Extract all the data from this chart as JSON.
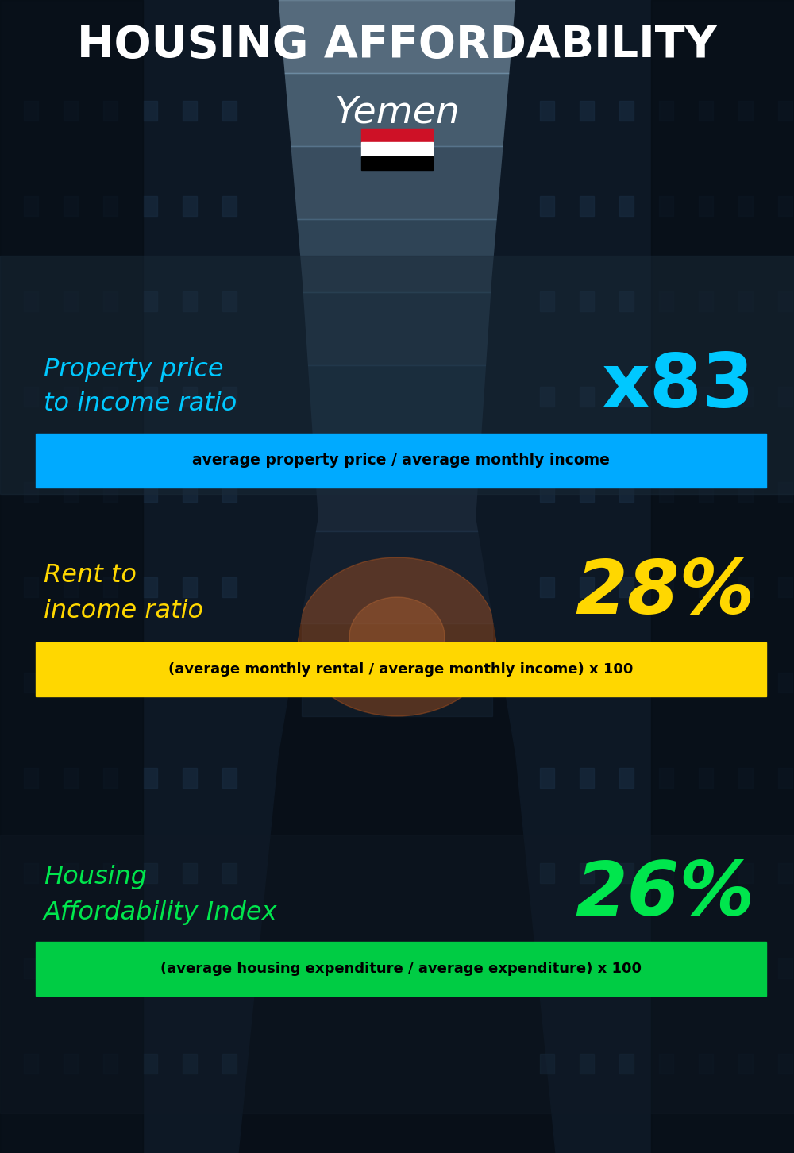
{
  "title_line1": "HOUSING AFFORDABILITY",
  "title_line2": "Yemen",
  "bg_color": "#0a1420",
  "section1_label": "Property price\nto income ratio",
  "section1_value": "x83",
  "section1_label_color": "#00c8ff",
  "section1_value_color": "#00c8ff",
  "section1_box_color": "#00aaff",
  "section1_formula": "average property price / average monthly income",
  "section2_label": "Rent to\nincome ratio",
  "section2_value": "28%",
  "section2_label_color": "#FFD700",
  "section2_value_color": "#FFD700",
  "section2_box_color": "#FFD700",
  "section2_formula": "(average monthly rental / average monthly income) x 100",
  "section3_label": "Housing\nAffordability Index",
  "section3_value": "26%",
  "section3_label_color": "#00e64d",
  "section3_value_color": "#00e64d",
  "section3_box_color": "#00cc44",
  "section3_formula": "(average housing expenditure / average expenditure) x 100"
}
